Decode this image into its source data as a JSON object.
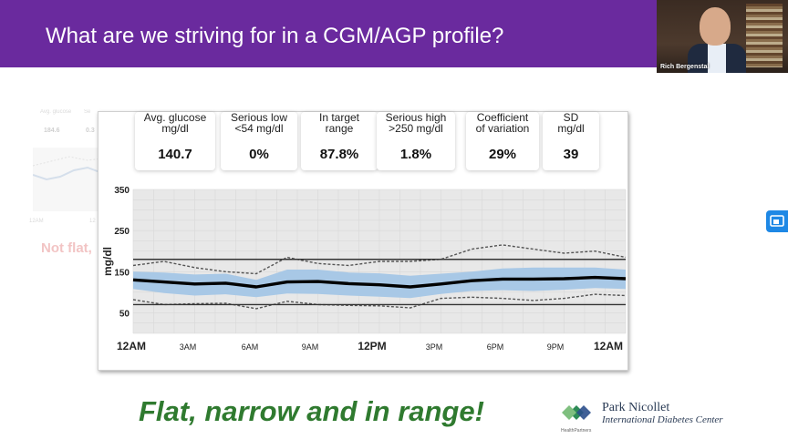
{
  "slide": {
    "title": "What are we striving for in a CGM/AGP profile?",
    "tagline": "Flat, narrow and in range!",
    "ghost_caption": "Not flat,",
    "ghost_labels": [
      "Avg. glucose",
      "Se"
    ],
    "ghost_values": [
      "184.6",
      "0.3"
    ],
    "ghost_axis": [
      "12AM",
      "12"
    ]
  },
  "video": {
    "name": "Rich Bergenstal"
  },
  "stats": [
    {
      "label1": "Avg. glucose",
      "label2": "mg/dl",
      "value": "140.7"
    },
    {
      "label1": "Serious low",
      "label2": "<54 mg/dl",
      "value": "0%"
    },
    {
      "label1": "In target",
      "label2": "range",
      "value": "87.8%"
    },
    {
      "label1": "Serious high",
      "label2": ">250 mg/dl",
      "value": "1.8%"
    },
    {
      "label1": "Coefficient",
      "label2": "of variation",
      "value": "29%"
    },
    {
      "label1": "SD",
      "label2": "mg/dl",
      "value": "39"
    }
  ],
  "chart_data": {
    "type": "line",
    "ylabel": "mg/dl",
    "ylim": [
      0,
      350
    ],
    "yticks": [
      "350",
      "250",
      "150",
      "50"
    ],
    "xlabels": [
      "12AM",
      "3AM",
      "6AM",
      "9AM",
      "12PM",
      "3PM",
      "6PM",
      "9PM",
      "12AM"
    ],
    "target_range": [
      70,
      180
    ],
    "x": [
      0,
      1.5,
      3,
      4.5,
      6,
      7.5,
      9,
      10.5,
      12,
      13.5,
      15,
      16.5,
      18,
      19.5,
      21,
      22.5,
      24
    ],
    "series": [
      {
        "values": [
          130,
          125,
          120,
          122,
          113,
          125,
          126,
          121,
          118,
          113,
          120,
          128,
          132,
          132,
          133,
          136,
          133
        ]
      },
      {
        "values": [
          108,
          98,
          92,
          95,
          88,
          97,
          96,
          92,
          89,
          86,
          96,
          103,
          105,
          103,
          106,
          110,
          108
        ]
      },
      {
        "values": [
          150,
          148,
          143,
          145,
          130,
          155,
          155,
          148,
          146,
          140,
          145,
          150,
          158,
          160,
          160,
          160,
          155
        ]
      },
      {
        "values": [
          82,
          70,
          72,
          73,
          60,
          78,
          70,
          68,
          67,
          62,
          85,
          88,
          85,
          80,
          85,
          95,
          92
        ]
      },
      {
        "values": [
          165,
          175,
          160,
          150,
          145,
          185,
          170,
          165,
          175,
          175,
          180,
          205,
          215,
          205,
          195,
          200,
          185
        ]
      }
    ],
    "colors": {
      "band": "#a8c8e6",
      "median": "#000000",
      "outer": "#555555",
      "grid": "#d8d8d8",
      "bg": "#e8e8e8"
    }
  },
  "brand": {
    "name": "Park Nicollet",
    "center": "International Diabetes Center",
    "sub": "HealthPartners"
  },
  "colors": {
    "title_bg": "#6a2a9e",
    "tagline": "#2f7a2f"
  }
}
